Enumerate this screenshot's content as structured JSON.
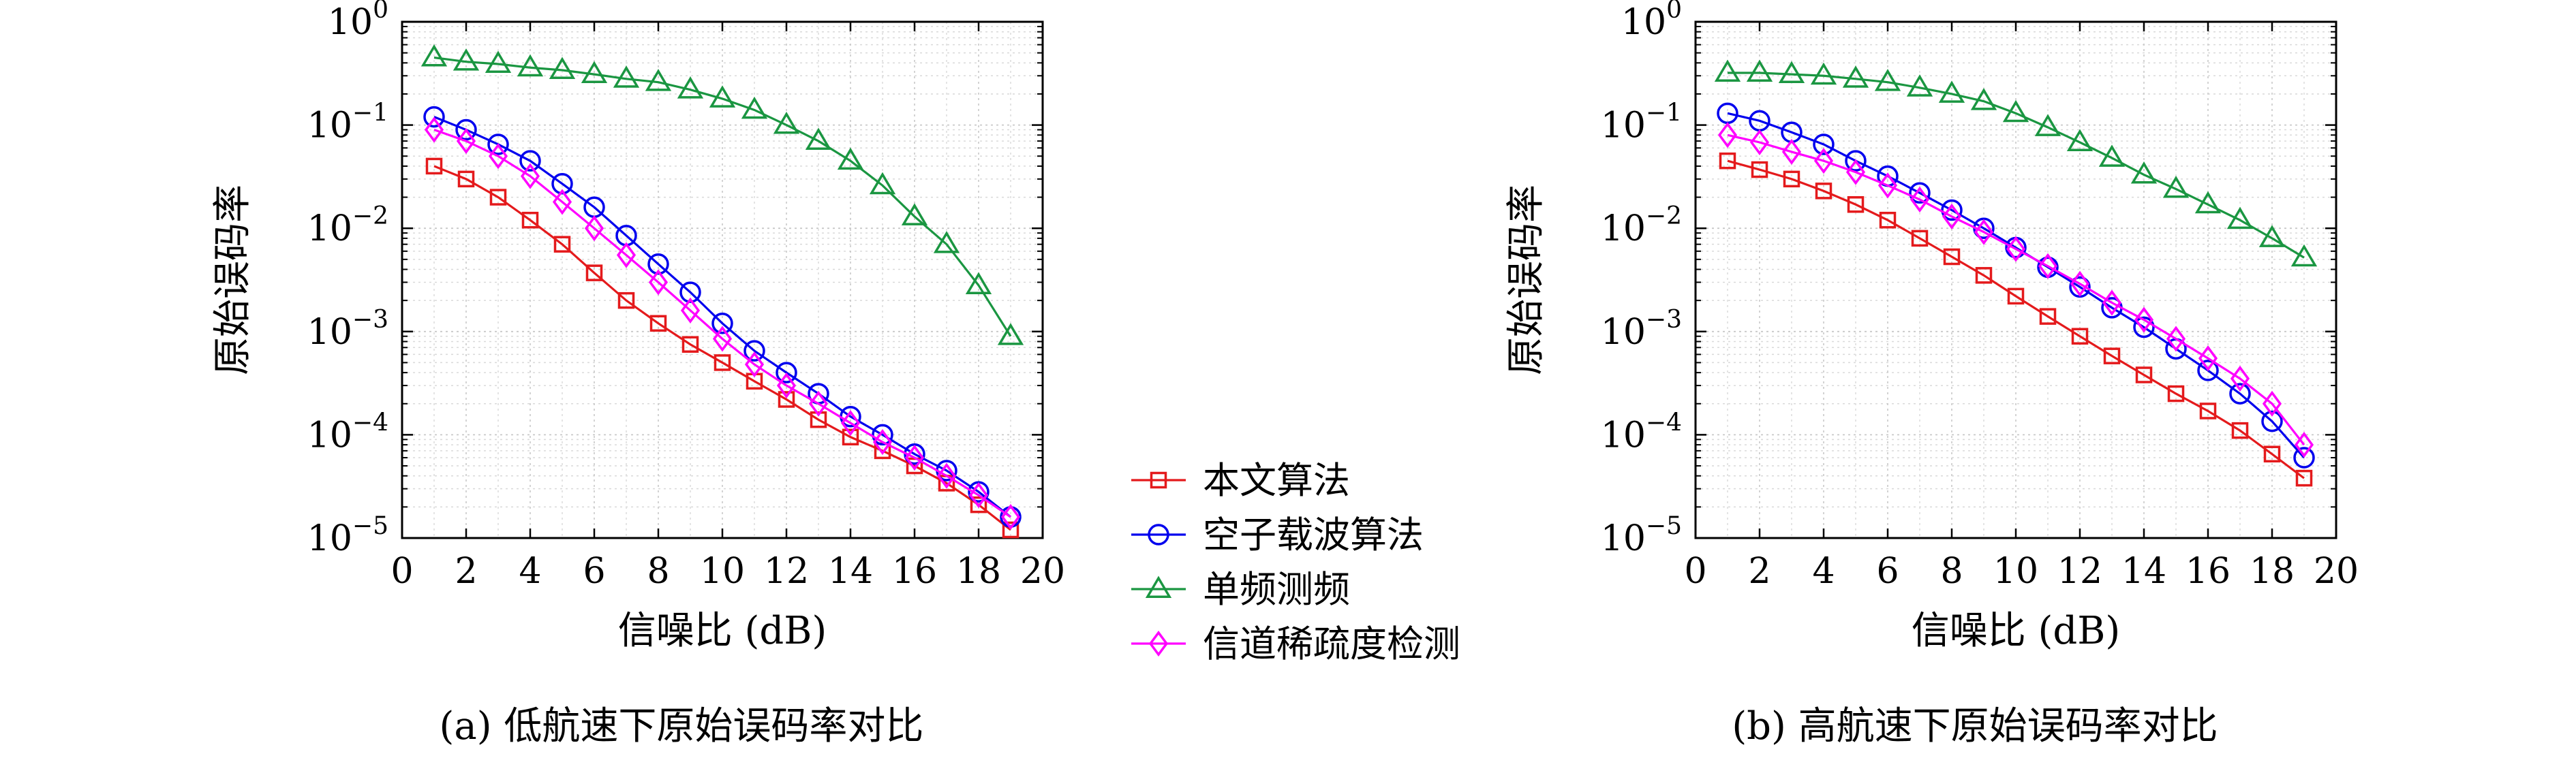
{
  "chart_data": [
    {
      "type": "line",
      "caption": "(a) 低航速下原始误码率对比",
      "xlabel": "信噪比 (dB)",
      "ylabel": "原始误码率",
      "xlim": [
        0,
        20
      ],
      "xticks": [
        "0",
        "2",
        "4",
        "6",
        "8",
        "10",
        "12",
        "14",
        "16",
        "18",
        "20"
      ],
      "ylim": [
        1e-05,
        1
      ],
      "yscale": "log",
      "yticks": [
        {
          "base": "10",
          "exp": "0"
        },
        {
          "base": "10",
          "exp": "−1"
        },
        {
          "base": "10",
          "exp": "−2"
        },
        {
          "base": "10",
          "exp": "−3"
        },
        {
          "base": "10",
          "exp": "−4"
        },
        {
          "base": "10",
          "exp": "−5"
        }
      ],
      "grid": true,
      "x": [
        1,
        2,
        3,
        4,
        5,
        6,
        7,
        8,
        9,
        10,
        11,
        12,
        13,
        14,
        15,
        16,
        17,
        18,
        19
      ],
      "series": [
        {
          "name": "本文算法",
          "color": "#e41a1c",
          "marker": "square",
          "values": [
            0.04,
            0.03,
            0.02,
            0.012,
            0.007,
            0.0037,
            0.002,
            0.0012,
            0.00075,
            0.0005,
            0.00033,
            0.00022,
            0.00014,
            9.5e-05,
            7e-05,
            5e-05,
            3.4e-05,
            2.1e-05,
            1.2e-05
          ]
        },
        {
          "name": "空子载波算法",
          "color": "#0000ee",
          "marker": "circle",
          "values": [
            0.12,
            0.09,
            0.065,
            0.045,
            0.027,
            0.016,
            0.0085,
            0.0045,
            0.0024,
            0.0012,
            0.00065,
            0.0004,
            0.00025,
            0.00015,
            0.0001,
            6.5e-05,
            4.5e-05,
            2.8e-05,
            1.6e-05
          ]
        },
        {
          "name": "单频测频",
          "color": "#1a9641",
          "marker": "triangle",
          "values": [
            0.45,
            0.41,
            0.39,
            0.36,
            0.34,
            0.31,
            0.28,
            0.26,
            0.22,
            0.18,
            0.14,
            0.1,
            0.07,
            0.045,
            0.026,
            0.013,
            0.007,
            0.0028,
            0.0009
          ]
        },
        {
          "name": "信道稀疏度检测",
          "color": "#ff00ff",
          "marker": "diamond",
          "values": [
            0.09,
            0.07,
            0.05,
            0.032,
            0.018,
            0.01,
            0.0055,
            0.003,
            0.0016,
            0.00085,
            0.00048,
            0.0003,
            0.0002,
            0.00013,
            8.5e-05,
            6e-05,
            4e-05,
            2.6e-05,
            1.6e-05
          ]
        }
      ]
    },
    {
      "type": "line",
      "caption": "(b) 高航速下原始误码率对比",
      "xlabel": "信噪比 (dB)",
      "ylabel": "原始误码率",
      "xlim": [
        0,
        20
      ],
      "xticks": [
        "0",
        "2",
        "4",
        "6",
        "8",
        "10",
        "12",
        "14",
        "16",
        "18",
        "20"
      ],
      "ylim": [
        1e-05,
        1
      ],
      "yscale": "log",
      "yticks": [
        {
          "base": "10",
          "exp": "0"
        },
        {
          "base": "10",
          "exp": "−1"
        },
        {
          "base": "10",
          "exp": "−2"
        },
        {
          "base": "10",
          "exp": "−3"
        },
        {
          "base": "10",
          "exp": "−4"
        },
        {
          "base": "10",
          "exp": "−5"
        }
      ],
      "grid": true,
      "x": [
        1,
        2,
        3,
        4,
        5,
        6,
        7,
        8,
        9,
        10,
        11,
        12,
        13,
        14,
        15,
        16,
        17,
        18,
        19
      ],
      "series": [
        {
          "name": "本文算法",
          "color": "#e41a1c",
          "marker": "square",
          "values": [
            0.045,
            0.037,
            0.03,
            0.023,
            0.017,
            0.012,
            0.008,
            0.0053,
            0.0035,
            0.0022,
            0.0014,
            0.0009,
            0.00058,
            0.00038,
            0.00025,
            0.00017,
            0.00011,
            6.5e-05,
            3.8e-05
          ]
        },
        {
          "name": "空子载波算法",
          "color": "#0000ee",
          "marker": "circle",
          "values": [
            0.13,
            0.11,
            0.085,
            0.065,
            0.045,
            0.032,
            0.022,
            0.015,
            0.01,
            0.0065,
            0.0042,
            0.0027,
            0.0017,
            0.0011,
            0.00068,
            0.00042,
            0.00025,
            0.000135,
            6e-05
          ]
        },
        {
          "name": "单频测频",
          "color": "#1a9641",
          "marker": "triangle",
          "values": [
            0.32,
            0.32,
            0.31,
            0.3,
            0.28,
            0.26,
            0.23,
            0.2,
            0.17,
            0.13,
            0.095,
            0.068,
            0.048,
            0.033,
            0.024,
            0.017,
            0.012,
            0.008,
            0.0052
          ]
        },
        {
          "name": "信道稀疏度检测",
          "color": "#ff00ff",
          "marker": "diamond",
          "values": [
            0.08,
            0.068,
            0.055,
            0.045,
            0.035,
            0.026,
            0.019,
            0.013,
            0.0092,
            0.0063,
            0.0043,
            0.0029,
            0.0019,
            0.0013,
            0.00085,
            0.00055,
            0.00035,
            0.0002,
            8e-05
          ]
        }
      ]
    }
  ],
  "legend": {
    "placement": "center",
    "entries": [
      {
        "label": "本文算法",
        "color": "#e41a1c",
        "marker": "square"
      },
      {
        "label": "空子载波算法",
        "color": "#0000ee",
        "marker": "circle"
      },
      {
        "label": "单频测频",
        "color": "#1a9641",
        "marker": "triangle"
      },
      {
        "label": "信道稀疏度检测",
        "color": "#ff00ff",
        "marker": "diamond"
      }
    ]
  }
}
